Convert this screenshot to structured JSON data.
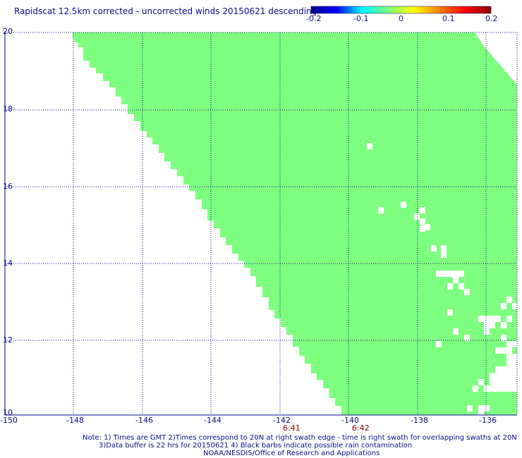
{
  "title": "Rapidscat 12.5km corrected - uncorrected winds 20150621 descending",
  "colorbar": {
    "stops": [
      "#00008b",
      "#0000ff",
      "#00ffff",
      "#7fff7f",
      "#ffff00",
      "#ff7f00",
      "#ff0000",
      "#8b0000"
    ],
    "labels": [
      "-0.2",
      "-0.1",
      "0",
      "0.1",
      "0.2"
    ]
  },
  "map": {
    "fill_color": "#7fff7f",
    "lon_labels": [
      "-150",
      "-148",
      "-146",
      "-144",
      "-142",
      "-140",
      "-138",
      "-136"
    ],
    "lat_labels": [
      "20",
      "18",
      "16",
      "14",
      "12",
      "10"
    ],
    "times": [
      "6:41",
      "6:42"
    ],
    "time_color": "#8b0000"
  },
  "notes": [
    "Note: 1) Times are GMT 2)Times correspond to 20N at right swath edge - time is right swath for overlapping swaths at 20N",
    "3)Data buffer is 22 hrs for 20150621 4) Black barbs indicate possible rain contamination",
    "NOAA/NESDIS/Office of Research and Applications"
  ]
}
